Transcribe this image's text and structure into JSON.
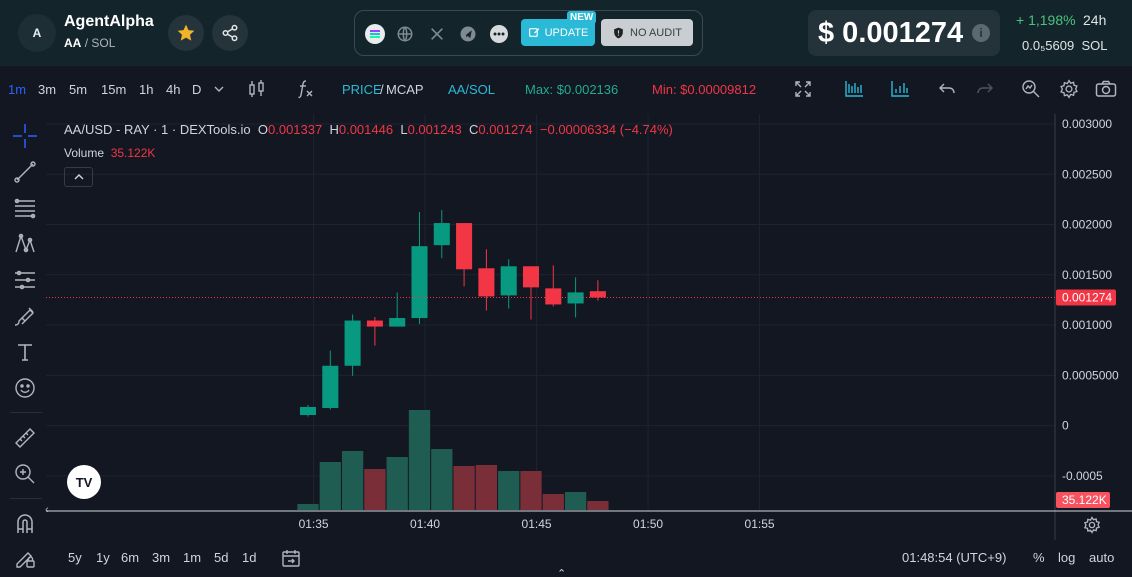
{
  "header": {
    "avatar_letter": "A",
    "token_name": "AgentAlpha",
    "pair_base": "AA",
    "pair_sep": "/",
    "pair_quote": "SOL",
    "new_badge": "NEW",
    "update_label": "UPDATE",
    "no_audit_label": "NO AUDIT",
    "price": "$ 0.001274",
    "change": "+ 1,198%",
    "change_period": "24h",
    "sol_price": "0.0₅5609",
    "sol_label": "SOL",
    "icons": [
      "star-icon",
      "share-icon",
      "solana-icon",
      "globe-icon",
      "x-icon",
      "telegram-icon",
      "more-icon",
      "edit-icon",
      "shield-icon",
      "info-icon"
    ]
  },
  "toolbar": {
    "timeframes": [
      "1m",
      "3m",
      "5m",
      "15m",
      "1h",
      "4h",
      "D"
    ],
    "active_timeframe": "1m",
    "price_label": "PRICE",
    "mcap_label": "MCAP",
    "price_mcap_sep": "/",
    "pair_toggle": "AA/SOL",
    "max_label": "Max: $0.002136",
    "min_label": "Min: $0.00009812"
  },
  "legend": {
    "symbol": "AA/USD - RAY · 1 · DEXTools.io",
    "open_label": "O",
    "open": "0.001337",
    "high_label": "H",
    "high": "0.001446",
    "low_label": "L",
    "low": "0.001243",
    "close_label": "C",
    "close": "0.001274",
    "change": "−0.00006334 (−4.74%)",
    "volume_label": "Volume",
    "volume": "35.122K"
  },
  "chart_data": {
    "type": "candlestick",
    "y_ticks": [
      "0.003000",
      "0.002500",
      "0.002000",
      "0.001500",
      "0.001000",
      "0.0005000",
      "0",
      "-0.0005"
    ],
    "y_tick_values": [
      0.003,
      0.0025,
      0.002,
      0.0015,
      0.001,
      0.0005,
      0,
      -0.0005
    ],
    "x_ticks": [
      "01:35",
      "01:40",
      "01:45",
      "01:50",
      "01:55"
    ],
    "x_tick_times": [
      95,
      100,
      105,
      110,
      115
    ],
    "ylim": [
      -0.00085,
      0.0031
    ],
    "xlim": [
      83.0,
      128.25
    ],
    "last_price_label": "0.001274",
    "last_price": 0.001274,
    "volume_label": "35.122K",
    "up_color": "#089981",
    "down_color": "#f23645",
    "candles": [
      {
        "t": 94.75,
        "o": 0.000105,
        "h": 0.000205,
        "l": 9e-05,
        "c": 0.000185
      },
      {
        "t": 95.75,
        "o": 0.000175,
        "h": 0.000745,
        "l": 0.00016,
        "c": 0.000595
      },
      {
        "t": 96.75,
        "o": 0.000595,
        "h": 0.001105,
        "l": 0.000495,
        "c": 0.001045
      },
      {
        "t": 97.75,
        "o": 0.001045,
        "h": 0.00108,
        "l": 0.000795,
        "c": 0.000985
      },
      {
        "t": 98.75,
        "o": 0.000985,
        "h": 0.001325,
        "l": 0.000985,
        "c": 0.00107
      },
      {
        "t": 99.75,
        "o": 0.00107,
        "h": 0.002125,
        "l": 0.00101,
        "c": 0.001785
      },
      {
        "t": 100.75,
        "o": 0.001795,
        "h": 0.002145,
        "l": 0.001665,
        "c": 0.002015
      },
      {
        "t": 101.75,
        "o": 0.002015,
        "h": 0.002015,
        "l": 0.001385,
        "c": 0.001555
      },
      {
        "t": 102.75,
        "o": 0.001565,
        "h": 0.001755,
        "l": 0.001145,
        "c": 0.001285
      },
      {
        "t": 103.75,
        "o": 0.001295,
        "h": 0.001655,
        "l": 0.001165,
        "c": 0.001585
      },
      {
        "t": 104.75,
        "o": 0.001585,
        "h": 0.001585,
        "l": 0.001055,
        "c": 0.001375
      },
      {
        "t": 105.75,
        "o": 0.001365,
        "h": 0.001595,
        "l": 0.001185,
        "c": 0.001205
      },
      {
        "t": 106.75,
        "o": 0.001215,
        "h": 0.001475,
        "l": 0.001075,
        "c": 0.001325
      },
      {
        "t": 107.75,
        "o": 0.001337,
        "h": 0.001446,
        "l": 0.001243,
        "c": 0.001274
      }
    ],
    "volumes": [
      {
        "t": 94.75,
        "v": 0.06,
        "up": true
      },
      {
        "t": 95.75,
        "v": 0.48,
        "up": true
      },
      {
        "t": 96.75,
        "v": 0.59,
        "up": true
      },
      {
        "t": 97.75,
        "v": 0.41,
        "up": false
      },
      {
        "t": 98.75,
        "v": 0.53,
        "up": true
      },
      {
        "t": 99.75,
        "v": 1.0,
        "up": true
      },
      {
        "t": 100.75,
        "v": 0.61,
        "up": true
      },
      {
        "t": 101.75,
        "v": 0.44,
        "up": false
      },
      {
        "t": 102.75,
        "v": 0.45,
        "up": false
      },
      {
        "t": 103.75,
        "v": 0.39,
        "up": true
      },
      {
        "t": 104.75,
        "v": 0.39,
        "up": false
      },
      {
        "t": 105.75,
        "v": 0.16,
        "up": false
      },
      {
        "t": 106.75,
        "v": 0.18,
        "up": true
      },
      {
        "t": 107.75,
        "v": 0.09,
        "up": false
      }
    ]
  },
  "bottombar": {
    "ranges": [
      "5y",
      "1y",
      "6m",
      "3m",
      "1m",
      "5d",
      "1d"
    ],
    "clock": "01:48:54 (UTC+9)",
    "percent": "%",
    "log": "log",
    "auto": "auto"
  }
}
